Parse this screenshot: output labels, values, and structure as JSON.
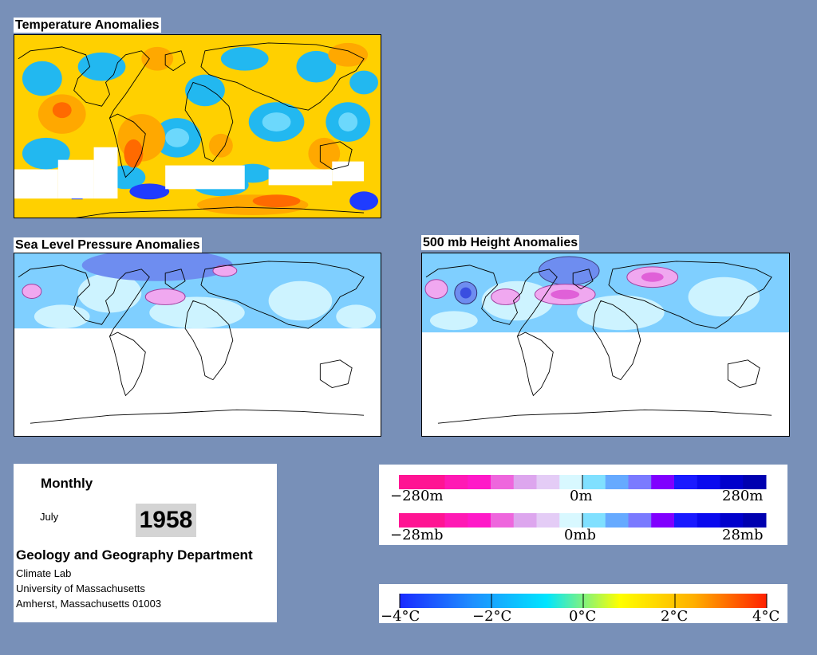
{
  "panels": {
    "temperature": {
      "title": "Temperature Anomalies"
    },
    "slp": {
      "title": "Sea Level Pressure Anomalies"
    },
    "height500": {
      "title": "500 mb Height Anomalies"
    }
  },
  "info": {
    "period": "Monthly",
    "month": "July",
    "year": "1958",
    "department": "Geology and Geography Department",
    "lines": [
      "Climate Lab",
      "University of Massachusetts",
      "Amherst, Massachusetts 01003"
    ]
  },
  "legend_height": {
    "labels": [
      "−280m",
      "0m",
      "280m"
    ],
    "colors": [
      "#ff1493",
      "#ff1493",
      "#ff19b4",
      "#ff19c8",
      "#ee66dd",
      "#dda6ee",
      "#e4ccf6",
      "#d8f8ff",
      "#80e0ff",
      "#66aaff",
      "#7a7aff",
      "#8000ff",
      "#1a1aff",
      "#0a0aee",
      "#0000cc",
      "#0000b0"
    ]
  },
  "legend_pressure": {
    "labels": [
      "−28mb",
      "0mb",
      "28mb"
    ],
    "colors": [
      "#ff1493",
      "#ff1493",
      "#ff19b4",
      "#ff19c8",
      "#ee66dd",
      "#dda6ee",
      "#e4ccf6",
      "#d8f8ff",
      "#80e0ff",
      "#66aaff",
      "#7a7aff",
      "#8000ff",
      "#1a1aff",
      "#0a0aee",
      "#0000cc",
      "#0000b0"
    ]
  },
  "legend_temperature": {
    "labels": [
      "−4°C",
      "−2°C",
      "0°C",
      "2°C",
      "4°C"
    ],
    "gradient": [
      "#1a2aff",
      "#1e90ff",
      "#00e5ff",
      "#ffff00",
      "#ffb000",
      "#ff2000"
    ]
  }
}
